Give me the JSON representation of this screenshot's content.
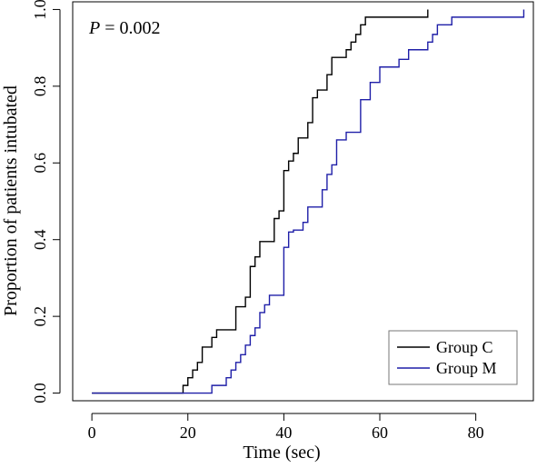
{
  "chart_data": {
    "type": "line",
    "step": true,
    "xlabel": "Time (sec)",
    "ylabel": "Proportion of patients intubated",
    "xlim": [
      -4,
      92
    ],
    "ylim": [
      -0.02,
      1.02
    ],
    "xticks": [
      0,
      20,
      40,
      60,
      80
    ],
    "yticks": [
      0.0,
      0.2,
      0.4,
      0.6,
      0.8,
      1.0
    ],
    "xtick_labels": [
      "0",
      "20",
      "40",
      "60",
      "80"
    ],
    "ytick_labels": [
      "0.0",
      "0.2",
      "0.4",
      "0.6",
      "0.8",
      "1.0"
    ],
    "annotation": {
      "symbol": "P",
      "rest": " = 0.002"
    },
    "legend_position": "bottom-right",
    "series": [
      {
        "name": "Group C",
        "color": "#000000",
        "x": [
          0,
          19,
          20,
          21,
          22,
          23,
          24,
          25,
          26,
          28,
          30,
          32,
          33,
          34,
          35,
          38,
          39,
          40,
          41,
          42,
          43,
          44,
          45,
          46,
          47,
          49,
          50,
          53,
          54,
          55,
          56,
          57,
          58,
          70
        ],
        "y": [
          0.0,
          0.02,
          0.04,
          0.06,
          0.08,
          0.12,
          0.12,
          0.145,
          0.165,
          0.165,
          0.225,
          0.25,
          0.33,
          0.355,
          0.395,
          0.455,
          0.475,
          0.58,
          0.605,
          0.625,
          0.665,
          0.665,
          0.705,
          0.77,
          0.79,
          0.83,
          0.875,
          0.895,
          0.915,
          0.935,
          0.96,
          0.98,
          0.98,
          1.0
        ]
      },
      {
        "name": "Group M",
        "color": "#1f1fa8",
        "x": [
          0,
          25,
          28,
          29,
          30,
          31,
          32,
          33,
          34,
          35,
          36,
          37,
          40,
          41,
          42,
          44,
          45,
          47,
          48,
          49,
          50,
          51,
          53,
          56,
          58,
          60,
          64,
          66,
          70,
          71,
          72,
          75,
          90
        ],
        "y": [
          0.0,
          0.02,
          0.04,
          0.06,
          0.08,
          0.1,
          0.125,
          0.15,
          0.17,
          0.21,
          0.23,
          0.255,
          0.38,
          0.42,
          0.425,
          0.445,
          0.485,
          0.485,
          0.53,
          0.57,
          0.595,
          0.66,
          0.68,
          0.765,
          0.81,
          0.85,
          0.87,
          0.895,
          0.915,
          0.935,
          0.96,
          0.98,
          1.0
        ]
      }
    ]
  }
}
